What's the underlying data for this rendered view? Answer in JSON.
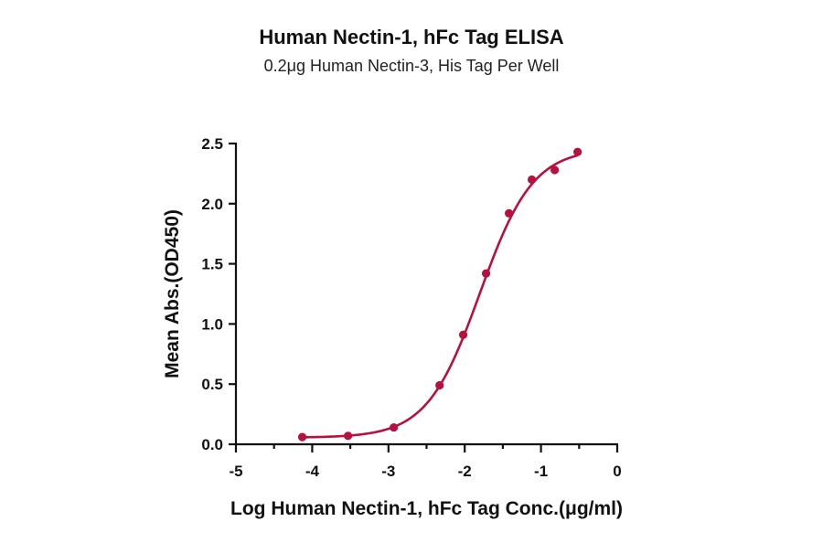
{
  "chart_data": {
    "type": "scatter",
    "title": "Human Nectin-1, hFc Tag ELISA",
    "subtitle": "0.2μg Human Nectin-3, His Tag Per Well",
    "xlabel": "Log Human Nectin-1, hFc Tag Conc.(μg/ml)",
    "ylabel": "Mean Abs.(OD450)",
    "xlim": [
      -5,
      0
    ],
    "ylim": [
      0,
      2.5
    ],
    "xticks": [
      "-5",
      "-4",
      "-3",
      "-2",
      "-1",
      "0"
    ],
    "yticks": [
      "0.0",
      "0.5",
      "1.0",
      "1.5",
      "2.0",
      "2.5"
    ],
    "grid": false,
    "series": [
      {
        "points": [
          {
            "x": -4.13,
            "y": 0.06
          },
          {
            "x": -3.53,
            "y": 0.07
          },
          {
            "x": -2.93,
            "y": 0.14
          },
          {
            "x": -2.33,
            "y": 0.49
          },
          {
            "x": -2.02,
            "y": 0.91
          },
          {
            "x": -1.72,
            "y": 1.42
          },
          {
            "x": -1.42,
            "y": 1.92
          },
          {
            "x": -1.12,
            "y": 2.2
          },
          {
            "x": -0.82,
            "y": 2.28
          },
          {
            "x": -0.52,
            "y": 2.43
          }
        ],
        "fit": {
          "model": "4PL",
          "bottom": 0.055,
          "top": 2.46,
          "logEC50": -1.8,
          "hill": 1.25
        },
        "color": "#b5123f"
      }
    ]
  }
}
